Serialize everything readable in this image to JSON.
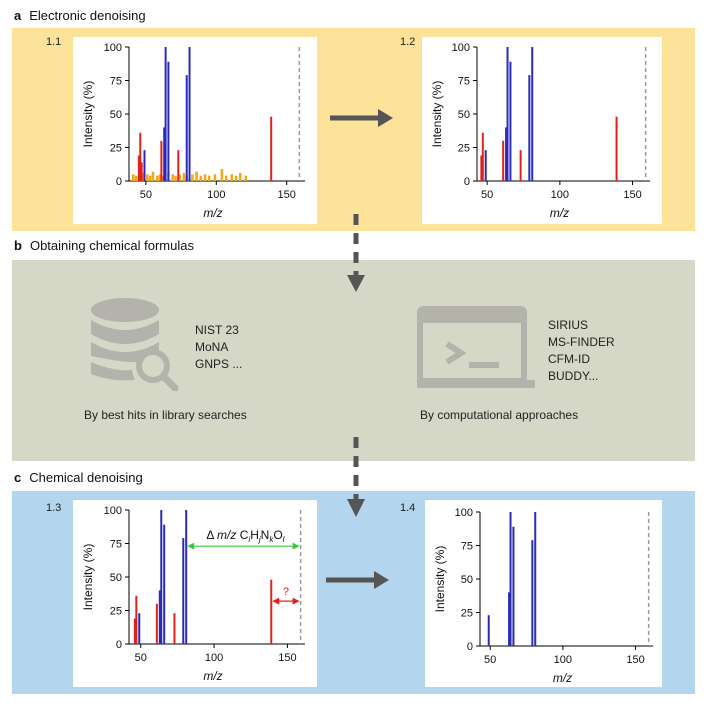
{
  "sections": {
    "a": {
      "letter": "a",
      "title": "Electronic denoising",
      "band_color": "#fde29a"
    },
    "b": {
      "letter": "b",
      "title": "Obtaining chemical formulas",
      "band_color": "#d5d8c6"
    },
    "c": {
      "letter": "c",
      "title": "Chemical denoising",
      "band_color": "#b3d5ee"
    }
  },
  "library": {
    "items": [
      "NIST 23",
      "MoNA",
      "GNPS ..."
    ],
    "caption": "By best hits in library searches",
    "icon": "database-search-icon"
  },
  "computational": {
    "items": [
      "SIRIUS",
      "MS-FINDER",
      "CFM-ID",
      "BUDDY..."
    ],
    "caption": "By computational approaches",
    "icon": "terminal-window-icon"
  },
  "annotation": {
    "delta_prefix": "Δ",
    "delta_mz": "m/z",
    "formula_parts": [
      "C",
      "i",
      "H",
      "j",
      "N",
      "k",
      "O",
      "l"
    ],
    "question": "?"
  },
  "colors": {
    "blue": "#2b2bb8",
    "red": "#e0221c",
    "orange": "#f0a81a",
    "green": "#3cc83c",
    "arrow": "#555555"
  },
  "chart_data": [
    {
      "id": "1.1",
      "type": "bar",
      "ylabel": "Intensity (%)",
      "xlabel": "m/z",
      "xlim": [
        38,
        163
      ],
      "ylim": [
        0,
        100
      ],
      "xticks": [
        50,
        100,
        150
      ],
      "yticks": [
        0,
        25,
        50,
        75,
        100
      ],
      "precursor_mz": 159,
      "series": [
        {
          "color": "blue",
          "x": [
            49,
            63,
            64,
            66,
            79,
            81
          ],
          "values": [
            23,
            40,
            100,
            89,
            79,
            100
          ]
        },
        {
          "color": "red",
          "x": [
            45,
            46,
            47,
            61,
            63,
            73,
            139
          ],
          "values": [
            19,
            36,
            14,
            30,
            4,
            23,
            48
          ]
        },
        {
          "color": "orange",
          "x": [
            41,
            43,
            46,
            48,
            51,
            53,
            55,
            58,
            60,
            62,
            66,
            69,
            71,
            74,
            77,
            79,
            83,
            86,
            89,
            92,
            95,
            99,
            104,
            107,
            111,
            114,
            117,
            121
          ],
          "values": [
            5,
            4,
            12,
            6,
            5,
            4,
            7,
            4,
            5,
            4,
            6,
            5,
            4,
            5,
            6,
            4,
            5,
            7,
            4,
            5,
            4,
            5,
            9,
            4,
            5,
            4,
            6,
            4
          ]
        }
      ]
    },
    {
      "id": "1.2",
      "type": "bar",
      "ylabel": "Intensity (%)",
      "xlabel": "m/z",
      "xlim": [
        43,
        162
      ],
      "ylim": [
        0,
        100
      ],
      "xticks": [
        50,
        100,
        150
      ],
      "yticks": [
        0,
        25,
        50,
        75,
        100
      ],
      "precursor_mz": 159,
      "series": [
        {
          "color": "blue",
          "x": [
            49,
            63,
            64,
            66,
            79,
            81
          ],
          "values": [
            23,
            40,
            100,
            89,
            79,
            100
          ]
        },
        {
          "color": "red",
          "x": [
            46,
            47,
            61,
            73,
            139
          ],
          "values": [
            19,
            36,
            30,
            23,
            48
          ]
        }
      ]
    },
    {
      "id": "1.3",
      "type": "bar",
      "ylabel": "Intensity (%)",
      "xlabel": "m/z",
      "xlim": [
        42,
        162
      ],
      "ylim": [
        0,
        100
      ],
      "xticks": [
        50,
        100,
        150
      ],
      "yticks": [
        0,
        25,
        50,
        75,
        100
      ],
      "precursor_mz": 159,
      "series": [
        {
          "color": "blue",
          "x": [
            49,
            63,
            64,
            66,
            79,
            81
          ],
          "values": [
            23,
            40,
            100,
            89,
            79,
            100
          ]
        },
        {
          "color": "red",
          "x": [
            46,
            47,
            61,
            73,
            139
          ],
          "values": [
            19,
            36,
            30,
            23,
            48
          ]
        }
      ]
    },
    {
      "id": "1.4",
      "type": "bar",
      "ylabel": "Intensity (%)",
      "xlabel": "m/z",
      "xlim": [
        43,
        162
      ],
      "ylim": [
        0,
        100
      ],
      "xticks": [
        50,
        100,
        150
      ],
      "yticks": [
        0,
        25,
        50,
        75,
        100
      ],
      "precursor_mz": 159,
      "series": [
        {
          "color": "blue",
          "x": [
            49,
            63,
            64,
            66,
            79,
            81
          ],
          "values": [
            23,
            40,
            100,
            89,
            79,
            100
          ]
        }
      ]
    }
  ]
}
